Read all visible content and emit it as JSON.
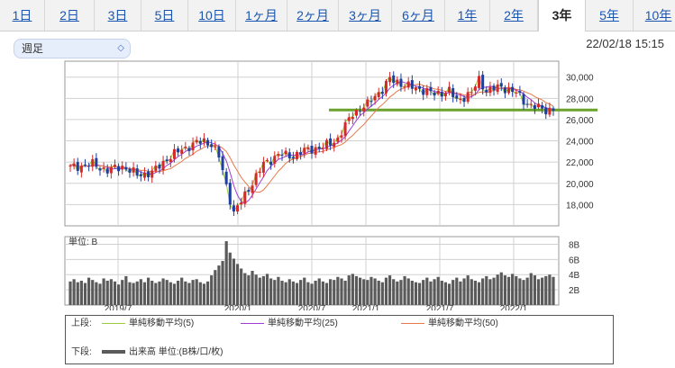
{
  "tabs": [
    {
      "label": "1日",
      "active": false
    },
    {
      "label": "2日",
      "active": false
    },
    {
      "label": "3日",
      "active": false
    },
    {
      "label": "5日",
      "active": false
    },
    {
      "label": "10日",
      "active": false
    },
    {
      "label": "1ヶ月",
      "active": false
    },
    {
      "label": "2ヶ月",
      "active": false
    },
    {
      "label": "3ヶ月",
      "active": false
    },
    {
      "label": "6ヶ月",
      "active": false
    },
    {
      "label": "1年",
      "active": false
    },
    {
      "label": "2年",
      "active": false
    },
    {
      "label": "3年",
      "active": true
    },
    {
      "label": "5年",
      "active": false
    },
    {
      "label": "10年",
      "active": false
    }
  ],
  "period_select": {
    "value": "週足",
    "arrows": "◇"
  },
  "timestamp": "22/02/18 15:15",
  "colors": {
    "up": "#d42a2a",
    "down": "#1f3f9e",
    "ma5": "#9fcc3b",
    "ma25": "#a03cd8",
    "ma50": "#e87a4a",
    "support": "#6aa22b",
    "volume": "#5a5a5a",
    "tab_link": "#1a56b0"
  },
  "chart_data": {
    "type": "candlestick",
    "x_tick_labels": [
      "2019/7",
      "2020/1",
      "2020/7",
      "2021/1",
      "2021/7",
      "2022/1"
    ],
    "price_axis": {
      "ticks": [
        "30,000",
        "28,000",
        "26,000",
        "24,000",
        "22,000",
        "20,000",
        "18,000"
      ],
      "ylim": [
        16000,
        31500
      ]
    },
    "volume_axis": {
      "unit_label": "単位: B",
      "ticks": [
        "8B",
        "6B",
        "4B",
        "2B"
      ],
      "ylim": [
        0,
        9
      ]
    },
    "support_line_value": 26900,
    "anchors": [
      [
        0,
        21500
      ],
      [
        6,
        21800
      ],
      [
        10,
        21200
      ],
      [
        14,
        21600
      ],
      [
        18,
        20800
      ],
      [
        22,
        21000
      ],
      [
        26,
        22300
      ],
      [
        30,
        23200
      ],
      [
        34,
        23800
      ],
      [
        36,
        24000
      ],
      [
        38,
        23700
      ],
      [
        40,
        22500
      ],
      [
        42,
        19800
      ],
      [
        44,
        17200
      ],
      [
        46,
        18300
      ],
      [
        48,
        19500
      ],
      [
        52,
        21800
      ],
      [
        56,
        22700
      ],
      [
        60,
        22600
      ],
      [
        64,
        23200
      ],
      [
        68,
        23400
      ],
      [
        72,
        24200
      ],
      [
        76,
        26600
      ],
      [
        80,
        27400
      ],
      [
        82,
        28300
      ],
      [
        84,
        28800
      ],
      [
        86,
        29800
      ],
      [
        88,
        29600
      ],
      [
        90,
        29200
      ],
      [
        94,
        28900
      ],
      [
        98,
        28400
      ],
      [
        102,
        28700
      ],
      [
        104,
        27800
      ],
      [
        108,
        28500
      ],
      [
        110,
        29800
      ],
      [
        112,
        28700
      ],
      [
        116,
        29100
      ],
      [
        120,
        28500
      ],
      [
        122,
        27800
      ],
      [
        124,
        27300
      ],
      [
        128,
        26900
      ],
      [
        130,
        27000
      ]
    ],
    "volume": [
      3.1,
      3.4,
      3.0,
      3.2,
      2.9,
      3.6,
      3.3,
      3.0,
      2.8,
      3.5,
      3.2,
      3.4,
      3.1,
      2.7,
      3.3,
      3.8,
      3.0,
      2.9,
      3.1,
      3.4,
      3.0,
      3.6,
      3.2,
      2.9,
      3.1,
      3.5,
      3.3,
      3.0,
      2.8,
      3.2,
      3.6,
      3.1,
      2.9,
      3.3,
      3.4,
      3.0,
      2.8,
      3.1,
      3.9,
      4.6,
      5.2,
      5.8,
      8.4,
      6.9,
      6.1,
      5.4,
      4.8,
      4.2,
      3.9,
      4.5,
      4.0,
      3.6,
      3.8,
      4.1,
      3.5,
      3.3,
      3.7,
      3.2,
      3.0,
      3.4,
      3.1,
      2.9,
      3.3,
      3.6,
      3.0,
      2.8,
      3.2,
      3.5,
      3.1,
      2.9,
      3.4,
      3.3,
      3.7,
      3.5,
      3.2,
      3.9,
      4.1,
      3.8,
      3.6,
      3.4,
      3.3,
      3.7,
      3.5,
      3.2,
      3.0,
      3.6,
      3.9,
      3.4,
      3.1,
      3.3,
      3.8,
      3.5,
      3.2,
      3.0,
      2.9,
      3.3,
      3.6,
      3.1,
      3.4,
      3.7,
      3.2,
      3.0,
      2.8,
      3.3,
      3.6,
      3.1,
      3.5,
      3.9,
      3.4,
      3.2,
      3.0,
      3.5,
      3.8,
      3.4,
      3.6,
      4.0,
      4.3,
      3.9,
      3.7,
      4.1,
      3.8,
      3.5,
      3.3,
      3.6,
      4.2,
      3.9,
      3.4,
      3.6,
      3.8,
      4.0,
      3.7
    ],
    "legend_upper_label": "上段:",
    "legend_lower_label": "下段:",
    "series": [
      {
        "name": "単純移動平均(5)",
        "color_key": "ma5"
      },
      {
        "name": "単純移動平均(25)",
        "color_key": "ma25"
      },
      {
        "name": "単純移動平均(50)",
        "color_key": "ma50"
      }
    ],
    "volume_series_name": "出来高 単位:(B株/口/枚)"
  }
}
